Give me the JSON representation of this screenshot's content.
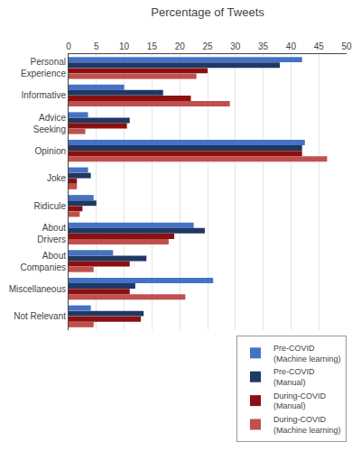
{
  "chart_data": {
    "type": "bar",
    "orientation": "horizontal",
    "x_label": "Percentage of Tweets",
    "categories": [
      "Personal\nExperience",
      "Informative",
      "Advice\nSeeking",
      "Opinion",
      "Joke",
      "Ridicule",
      "About\nDrivers",
      "About\nCompanies",
      "Miscellaneous",
      "Not Relevant"
    ],
    "series": [
      {
        "name": "Pre-COVID\n(Machine learning)",
        "color": "#4472C4",
        "values": [
          42.0,
          10.0,
          3.5,
          42.5,
          3.5,
          4.5,
          22.5,
          8.0,
          26.0,
          4.0
        ]
      },
      {
        "name": "Pre-COVID\n(Manual)",
        "color": "#1F3864",
        "values": [
          38.0,
          17.0,
          11.0,
          42.0,
          4.0,
          5.0,
          24.5,
          14.0,
          12.0,
          13.5
        ]
      },
      {
        "name": "During-COVID\n(Manual)",
        "color": "#8B1010",
        "values": [
          25.0,
          22.0,
          10.5,
          42.0,
          1.5,
          2.5,
          19.0,
          11.0,
          11.0,
          13.0
        ]
      },
      {
        "name": "During-COVID\n(Machine learning)",
        "color": "#C0504D",
        "values": [
          23.0,
          29.0,
          3.0,
          46.5,
          1.5,
          2.0,
          18.0,
          4.5,
          21.0,
          4.5
        ]
      }
    ],
    "xlim": [
      0,
      50
    ],
    "xticks": [
      0,
      5,
      10,
      15,
      20,
      25,
      30,
      35,
      40,
      45,
      50
    ],
    "grid": true,
    "legend": "lower right"
  }
}
